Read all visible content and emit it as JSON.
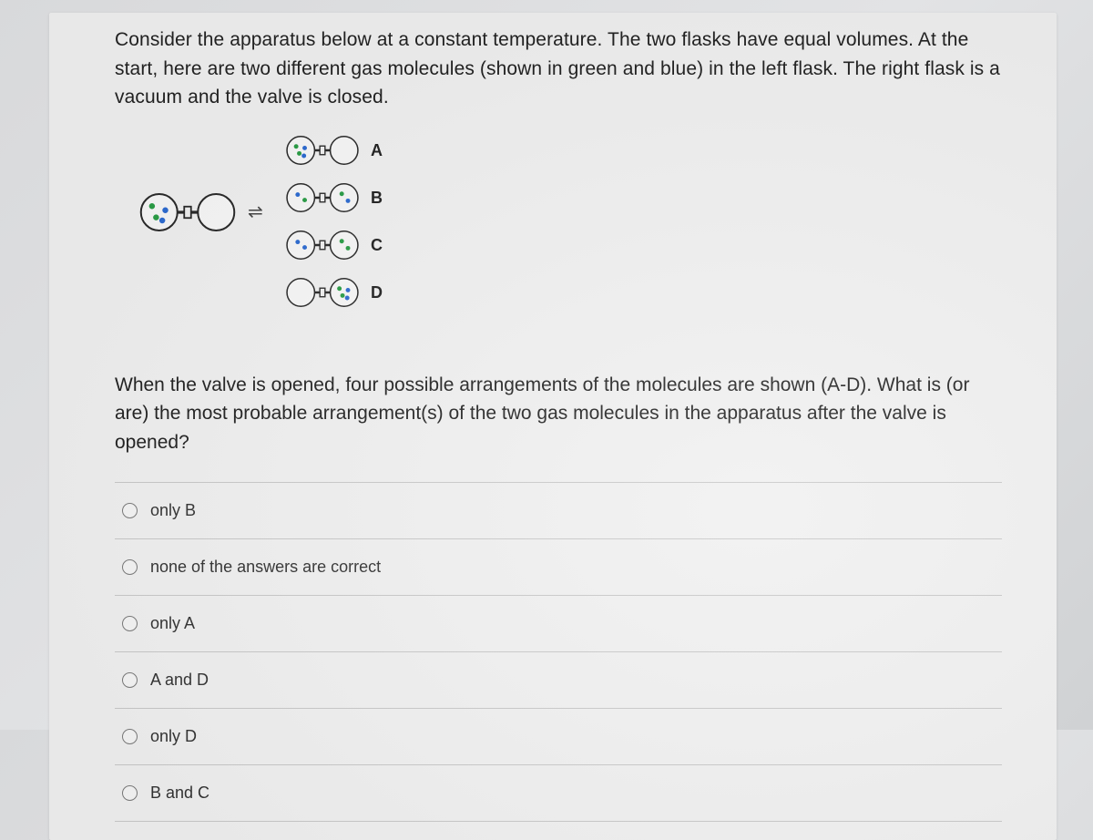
{
  "question": {
    "intro": "Consider the apparatus below at a constant temperature. The two flasks have equal volumes. At the start, here are two different gas molecules (shown in green and blue) in the left flask. The right flask is a vacuum and the valve is closed.",
    "follow": "When the valve is opened, four possible arrangements of the molecules are shown (A-D). What is (or are) the most probable arrangement(s) of the two gas molecules in the apparatus after the valve is opened?"
  },
  "diagram": {
    "flask_r": 16,
    "neck_w": 18,
    "outline": "#2a2a2a",
    "outline_w": 1.6,
    "green": "#2a9d46",
    "blue": "#2d6bd1",
    "main_label_gap": 12,
    "main": {
      "left_dots": [
        [
          "green",
          -7,
          -6
        ],
        [
          "blue",
          6,
          -2
        ],
        [
          "green",
          -3,
          5
        ],
        [
          "blue",
          3,
          8
        ]
      ],
      "right_dots": []
    },
    "options": [
      {
        "label": "A",
        "left": [
          [
            "green",
            -6,
            -5
          ],
          [
            "blue",
            5,
            -3
          ],
          [
            "green",
            -2,
            4
          ],
          [
            "blue",
            4,
            7
          ]
        ],
        "right": []
      },
      {
        "label": "B",
        "left": [
          [
            "blue",
            -4,
            -4
          ],
          [
            "green",
            5,
            3
          ]
        ],
        "right": [
          [
            "green",
            -3,
            -5
          ],
          [
            "blue",
            5,
            4
          ]
        ]
      },
      {
        "label": "C",
        "left": [
          [
            "blue",
            -4,
            -4
          ],
          [
            "blue",
            5,
            3
          ]
        ],
        "right": [
          [
            "green",
            -3,
            -5
          ],
          [
            "green",
            5,
            4
          ]
        ]
      },
      {
        "label": "D",
        "left": [],
        "right": [
          [
            "green",
            -6,
            -5
          ],
          [
            "blue",
            5,
            -3
          ],
          [
            "green",
            -2,
            4
          ],
          [
            "blue",
            4,
            7
          ]
        ]
      }
    ]
  },
  "answers": [
    "only B",
    "none of the answers are correct",
    "only A",
    "A and D",
    "only D",
    "B and C"
  ]
}
